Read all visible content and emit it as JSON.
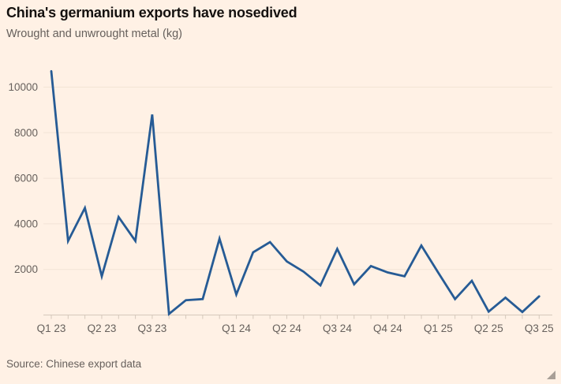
{
  "header": {
    "title": "China's germanium exports have nosedived",
    "subtitle": "Wrought and unwrought metal (kg)"
  },
  "footer": {
    "source": "Source: Chinese export data"
  },
  "colors": {
    "background": "#FFF1E5",
    "line": "#265B95",
    "title_text": "#14110F",
    "muted_text": "#66605C",
    "gridline": "#F2E4D6",
    "axis": "#D5C8BB"
  },
  "chart_data": {
    "type": "line",
    "title": "China's germanium exports have nosedived",
    "subtitle": "Wrought and unwrought metal (kg)",
    "ylabel": "kg",
    "x": [
      "Jan 23",
      "Feb 23",
      "Mar 23",
      "Apr 23",
      "May 23",
      "Jun 23",
      "Jul 23",
      "Aug 23",
      "Oct 23",
      "Nov 23",
      "Dec 23",
      "Jan 24",
      "Feb 24",
      "Mar 24",
      "Apr 24",
      "May 24",
      "Jun 24",
      "Jul 24",
      "Aug 24",
      "Sep 24",
      "Oct 24",
      "Nov 24",
      "Dec 24",
      "Jan 25",
      "Feb 25",
      "Mar 25",
      "Apr 25",
      "May 25",
      "Jun 25",
      "Jul 25"
    ],
    "values": [
      10700,
      3250,
      4700,
      1700,
      4300,
      3250,
      8800,
      50,
      650,
      700,
      3350,
      900,
      2750,
      3200,
      2350,
      1900,
      1300,
      2900,
      1350,
      2150,
      1870,
      1700,
      3050,
      1860,
      700,
      1500,
      150,
      760,
      130,
      820
    ],
    "x_tick_labels": [
      {
        "label": "Q1 23",
        "index": 0
      },
      {
        "label": "Q2 23",
        "index": 3
      },
      {
        "label": "Q3 23",
        "index": 6
      },
      {
        "label": "Q1 24",
        "index": 11
      },
      {
        "label": "Q2 24",
        "index": 14
      },
      {
        "label": "Q3 24",
        "index": 17
      },
      {
        "label": "Q4 24",
        "index": 20
      },
      {
        "label": "Q1 25",
        "index": 23
      },
      {
        "label": "Q2 25",
        "index": 26
      },
      {
        "label": "Q3 25",
        "index": 29
      }
    ],
    "y_ticks": [
      2000,
      4000,
      6000,
      8000,
      10000
    ],
    "ylim": [
      0,
      11000
    ],
    "grid": "horizontal-only",
    "legend": "none",
    "line_color": "#265B95",
    "note": "monthly data; one month (Sep 23) absent from series"
  }
}
